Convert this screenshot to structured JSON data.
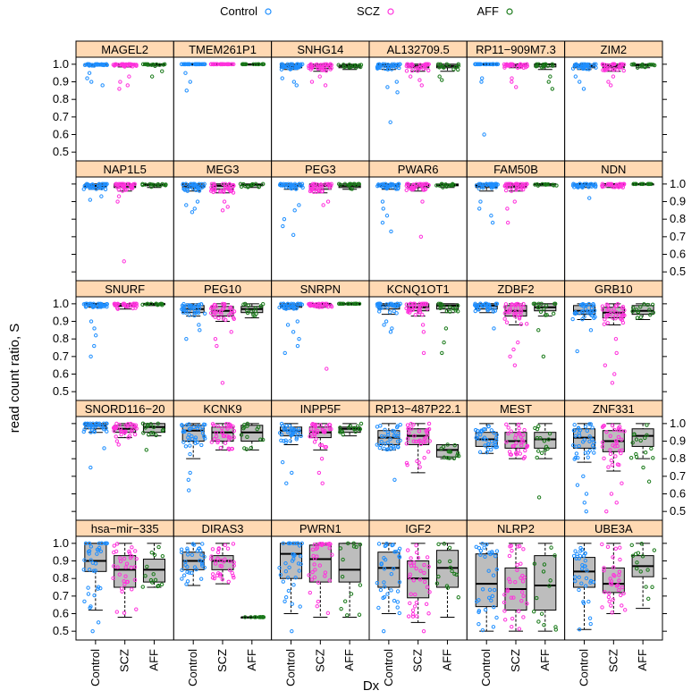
{
  "chart_data": {
    "type": "box",
    "layout": {
      "columns": 6,
      "rows": 5
    },
    "groups": [
      "Control",
      "SCZ",
      "AFF"
    ],
    "colors": {
      "Control": "#1f8fff",
      "SCZ": "#ff33dd",
      "AFF": "#1a7a1a",
      "strip": "#ffd9b3",
      "box": "#bdbdbd"
    },
    "xlabel": "Dx",
    "ylabel": "read count ratio, S",
    "ylim": [
      0.45,
      1.04
    ],
    "yticks": [
      0.5,
      0.6,
      0.7,
      0.8,
      0.9,
      1.0
    ],
    "ytick_labels": [
      "0.5",
      "0.6",
      "0.7",
      "0.8",
      "0.9",
      "1.0"
    ],
    "panels": [
      {
        "gene": "MAGEL2",
        "stats": {
          "Control": [
            0.99,
            0.995,
            1,
            1,
            1
          ],
          "SCZ": [
            0.985,
            0.995,
            1,
            1,
            1
          ],
          "AFF": [
            0.99,
            0.995,
            1,
            1,
            1
          ]
        },
        "low": {
          "Control": [
            0.88,
            0.9,
            0.92,
            0.95
          ],
          "SCZ": [
            0.86,
            0.88,
            0.9,
            0.93
          ],
          "AFF": [
            0.93,
            0.96
          ]
        }
      },
      {
        "gene": "TMEM261P1",
        "stats": {
          "Control": [
            1,
            1,
            1,
            1,
            1
          ],
          "SCZ": [
            1,
            1,
            1,
            1,
            1
          ],
          "AFF": [
            1,
            1,
            1,
            1,
            1
          ]
        },
        "low": {
          "Control": [
            0.85,
            0.9,
            0.95
          ],
          "SCZ": [],
          "AFF": []
        }
      },
      {
        "gene": "SNHG14",
        "stats": {
          "Control": [
            0.97,
            0.98,
            0.99,
            1,
            1
          ],
          "SCZ": [
            0.96,
            0.975,
            0.99,
            1,
            1
          ],
          "AFF": [
            0.97,
            0.98,
            0.99,
            0.995,
            1
          ]
        },
        "low": {
          "Control": [
            0.88,
            0.9,
            0.92
          ],
          "SCZ": [
            0.88,
            0.9,
            0.93
          ],
          "AFF": []
        }
      },
      {
        "gene": "AL132709.5",
        "stats": {
          "Control": [
            0.97,
            0.985,
            0.995,
            1,
            1
          ],
          "SCZ": [
            0.96,
            0.98,
            0.99,
            1,
            1
          ],
          "AFF": [
            0.96,
            0.98,
            0.99,
            1,
            1
          ]
        },
        "low": {
          "Control": [
            0.67,
            0.84,
            0.87,
            0.9
          ],
          "SCZ": [
            0.88,
            0.91,
            0.93
          ],
          "AFF": [
            0.91,
            0.93
          ]
        }
      },
      {
        "gene": "RP11−909M7.3",
        "stats": {
          "Control": [
            1,
            1,
            1,
            1,
            1
          ],
          "SCZ": [
            0.98,
            0.99,
            1,
            1,
            1
          ],
          "AFF": [
            0.97,
            0.985,
            1,
            1,
            1
          ]
        },
        "low": {
          "Control": [
            0.6,
            0.9,
            0.92
          ],
          "SCZ": [
            0.87,
            0.9,
            0.92
          ],
          "AFF": [
            0.86,
            0.9,
            0.93
          ]
        }
      },
      {
        "gene": "ZIM2",
        "stats": {
          "Control": [
            0.97,
            0.98,
            0.99,
            1,
            1
          ],
          "SCZ": [
            0.96,
            0.98,
            0.99,
            1,
            1
          ],
          "AFF": [
            0.98,
            0.99,
            0.995,
            1,
            1
          ]
        },
        "low": {
          "Control": [
            0.86,
            0.9,
            0.93
          ],
          "SCZ": [
            0.88,
            0.9,
            0.93
          ],
          "AFF": []
        }
      },
      {
        "gene": "NAP1L5",
        "stats": {
          "Control": [
            0.97,
            0.98,
            0.99,
            1,
            1
          ],
          "SCZ": [
            0.96,
            0.98,
            0.99,
            1,
            1
          ],
          "AFF": [
            0.98,
            0.99,
            0.995,
            1,
            1
          ]
        },
        "low": {
          "Control": [
            0.91,
            0.93
          ],
          "SCZ": [
            0.56,
            0.9,
            0.93
          ],
          "AFF": []
        }
      },
      {
        "gene": "MEG3",
        "stats": {
          "Control": [
            0.96,
            0.98,
            0.99,
            1,
            1
          ],
          "SCZ": [
            0.95,
            0.97,
            0.99,
            1,
            1
          ],
          "AFF": [
            0.98,
            0.99,
            0.995,
            1,
            1
          ]
        },
        "low": {
          "Control": [
            0.84,
            0.86,
            0.88,
            0.9
          ],
          "SCZ": [
            0.85,
            0.87,
            0.9
          ],
          "AFF": []
        }
      },
      {
        "gene": "PEG3",
        "stats": {
          "Control": [
            0.97,
            0.985,
            0.99,
            1,
            1
          ],
          "SCZ": [
            0.95,
            0.97,
            0.99,
            1,
            1
          ],
          "AFF": [
            0.97,
            0.98,
            0.99,
            1,
            1
          ]
        },
        "low": {
          "Control": [
            0.71,
            0.76,
            0.8,
            0.85,
            0.88
          ],
          "SCZ": [
            0.88,
            0.9
          ],
          "AFF": []
        }
      },
      {
        "gene": "PWAR6",
        "stats": {
          "Control": [
            0.97,
            0.985,
            0.99,
            1,
            1
          ],
          "SCZ": [
            0.96,
            0.98,
            0.99,
            1,
            1
          ],
          "AFF": [
            0.98,
            0.99,
            0.995,
            1,
            1
          ]
        },
        "low": {
          "Control": [
            0.73,
            0.78,
            0.82,
            0.86,
            0.9
          ],
          "SCZ": [
            0.7,
            0.9
          ],
          "AFF": []
        }
      },
      {
        "gene": "FAM50B",
        "stats": {
          "Control": [
            0.96,
            0.98,
            0.99,
            1,
            1
          ],
          "SCZ": [
            0.96,
            0.98,
            0.99,
            1,
            1
          ],
          "AFF": [
            0.99,
            0.995,
            1,
            1,
            1
          ]
        },
        "low": {
          "Control": [
            0.78,
            0.82,
            0.86,
            0.9
          ],
          "SCZ": [
            0.78,
            0.86,
            0.9
          ],
          "AFF": []
        }
      },
      {
        "gene": "NDN",
        "stats": {
          "Control": [
            0.98,
            0.99,
            1,
            1,
            1
          ],
          "SCZ": [
            0.98,
            0.99,
            1,
            1,
            1
          ],
          "AFF": [
            1,
            1,
            1,
            1,
            1
          ]
        },
        "low": {
          "Control": [
            0.92
          ],
          "SCZ": [],
          "AFF": []
        }
      },
      {
        "gene": "SNURF",
        "stats": {
          "Control": [
            0.98,
            0.99,
            1,
            1,
            1
          ],
          "SCZ": [
            0.97,
            0.985,
            0.99,
            1,
            1
          ],
          "AFF": [
            0.99,
            0.995,
            1,
            1,
            1
          ]
        },
        "low": {
          "Control": [
            0.7,
            0.76,
            0.82,
            0.86,
            0.9
          ],
          "SCZ": [],
          "AFF": []
        }
      },
      {
        "gene": "PEG10",
        "stats": {
          "Control": [
            0.93,
            0.95,
            0.97,
            0.99,
            1
          ],
          "SCZ": [
            0.9,
            0.93,
            0.96,
            0.985,
            1
          ],
          "AFF": [
            0.92,
            0.95,
            0.97,
            0.985,
            1
          ]
        },
        "low": {
          "Control": [
            0.8,
            0.85,
            0.88
          ],
          "SCZ": [
            0.55,
            0.76,
            0.8,
            0.84
          ],
          "AFF": []
        }
      },
      {
        "gene": "SNRPN",
        "stats": {
          "Control": [
            0.97,
            0.98,
            0.99,
            1,
            1
          ],
          "SCZ": [
            0.98,
            0.99,
            1,
            1,
            1
          ],
          "AFF": [
            1,
            1,
            1,
            1,
            1
          ]
        },
        "low": {
          "Control": [
            0.72,
            0.76,
            0.8,
            0.84,
            0.88,
            0.9
          ],
          "SCZ": [
            0.63
          ],
          "AFF": []
        }
      },
      {
        "gene": "KCNQ1OT1",
        "stats": {
          "Control": [
            0.94,
            0.97,
            0.99,
            1,
            1
          ],
          "SCZ": [
            0.93,
            0.96,
            0.98,
            1,
            1
          ],
          "AFF": [
            0.95,
            0.97,
            0.99,
            1,
            1
          ]
        },
        "low": {
          "Control": [
            0.84,
            0.86,
            0.88,
            0.9
          ],
          "SCZ": [
            0.72,
            0.84,
            0.88
          ],
          "AFF": [
            0.72,
            0.78,
            0.86
          ]
        }
      },
      {
        "gene": "ZDBF2",
        "stats": {
          "Control": [
            0.95,
            0.97,
            0.99,
            1,
            1
          ],
          "SCZ": [
            0.88,
            0.93,
            0.96,
            0.99,
            1
          ],
          "AFF": [
            0.93,
            0.96,
            0.98,
            1,
            1
          ]
        },
        "low": {
          "Control": [
            0.86
          ],
          "SCZ": [
            0.65,
            0.7,
            0.74,
            0.78
          ],
          "AFF": [
            0.7,
            0.85
          ]
        }
      },
      {
        "gene": "GRB10",
        "stats": {
          "Control": [
            0.91,
            0.94,
            0.96,
            0.99,
            1
          ],
          "SCZ": [
            0.88,
            0.92,
            0.95,
            0.98,
            1
          ],
          "AFF": [
            0.91,
            0.94,
            0.96,
            0.99,
            1
          ]
        },
        "low": {
          "Control": [
            0.73,
            0.85
          ],
          "SCZ": [
            0.55,
            0.6,
            0.65,
            0.72,
            0.8
          ],
          "AFF": []
        }
      },
      {
        "gene": "SNORD116−20",
        "stats": {
          "Control": [
            0.95,
            0.97,
            0.99,
            1,
            1
          ],
          "SCZ": [
            0.92,
            0.95,
            0.97,
            0.99,
            1
          ],
          "AFF": [
            0.93,
            0.95,
            0.98,
            1,
            1
          ]
        },
        "low": {
          "Control": [
            0.75,
            0.86
          ],
          "SCZ": [
            0.88,
            0.9
          ],
          "AFF": [
            0.85
          ]
        }
      },
      {
        "gene": "KCNK9",
        "stats": {
          "Control": [
            0.8,
            0.9,
            0.96,
            0.99,
            1
          ],
          "SCZ": [
            0.85,
            0.9,
            0.95,
            0.98,
            1
          ],
          "AFF": [
            0.85,
            0.9,
            0.95,
            0.99,
            1
          ]
        },
        "low": {
          "Control": [
            0.62,
            0.68,
            0.72
          ],
          "SCZ": [],
          "AFF": []
        }
      },
      {
        "gene": "INPP5F",
        "stats": {
          "Control": [
            0.88,
            0.93,
            0.96,
            0.98,
            1
          ],
          "SCZ": [
            0.85,
            0.92,
            0.95,
            0.98,
            1
          ],
          "AFF": [
            0.93,
            0.95,
            0.97,
            0.98,
            1
          ]
        },
        "low": {
          "Control": [
            0.66,
            0.72,
            0.78
          ],
          "SCZ": [
            0.66,
            0.72,
            0.8
          ],
          "AFF": []
        }
      },
      {
        "gene": "RP13−487P22.1",
        "stats": {
          "Control": [
            0.85,
            0.88,
            0.92,
            0.96,
            1
          ],
          "SCZ": [
            0.72,
            0.88,
            0.93,
            0.97,
            1
          ],
          "AFF": [
            0.8,
            0.81,
            0.85,
            0.88,
            0.88
          ]
        },
        "low": {
          "Control": [
            0.68
          ],
          "SCZ": [],
          "AFF": []
        }
      },
      {
        "gene": "MEST",
        "stats": {
          "Control": [
            0.83,
            0.87,
            0.91,
            0.95,
            1
          ],
          "SCZ": [
            0.8,
            0.86,
            0.9,
            0.95,
            1
          ],
          "AFF": [
            0.8,
            0.86,
            0.91,
            0.95,
            1
          ]
        },
        "low": {
          "Control": [],
          "SCZ": [],
          "AFF": [
            0.58
          ]
        }
      },
      {
        "gene": "ZNF331",
        "stats": {
          "Control": [
            0.78,
            0.86,
            0.92,
            0.97,
            1
          ],
          "SCZ": [
            0.73,
            0.84,
            0.9,
            0.96,
            1
          ],
          "AFF": [
            0.8,
            0.87,
            0.93,
            0.97,
            1
          ]
        },
        "low": {
          "Control": [
            0.5,
            0.55,
            0.6,
            0.65,
            0.7
          ],
          "SCZ": [
            0.5,
            0.55,
            0.6,
            0.66
          ],
          "AFF": [
            0.67,
            0.75
          ]
        }
      },
      {
        "gene": "hsa−mir−335",
        "stats": {
          "Control": [
            0.62,
            0.84,
            0.9,
            1,
            1
          ],
          "SCZ": [
            0.58,
            0.75,
            0.85,
            0.93,
            1
          ],
          "AFF": [
            0.75,
            0.78,
            0.85,
            0.91,
            1
          ]
        },
        "low": {
          "Control": [
            0.5,
            0.55
          ],
          "SCZ": [],
          "AFF": []
        }
      },
      {
        "gene": "DIRAS3",
        "stats": {
          "Control": [
            0.76,
            0.85,
            0.9,
            0.95,
            1
          ],
          "SCZ": [
            0.77,
            0.85,
            0.9,
            0.93,
            1
          ],
          "AFF": [
            0.58,
            0.58,
            0.58,
            0.58,
            0.58
          ]
        },
        "low": {
          "Control": [],
          "SCZ": [],
          "AFF": []
        }
      },
      {
        "gene": "PWRN1",
        "stats": {
          "Control": [
            0.6,
            0.8,
            0.94,
            1,
            1
          ],
          "SCZ": [
            0.58,
            0.78,
            0.91,
            0.99,
            1
          ],
          "AFF": [
            0.58,
            0.78,
            0.85,
            1,
            1
          ]
        },
        "low": {
          "Control": [
            0.5
          ],
          "SCZ": [],
          "AFF": []
        }
      },
      {
        "gene": "IGF2",
        "stats": {
          "Control": [
            0.6,
            0.75,
            0.86,
            0.95,
            1
          ],
          "SCZ": [
            0.55,
            0.69,
            0.8,
            0.9,
            1
          ],
          "AFF": [
            0.58,
            0.75,
            0.86,
            0.96,
            1
          ]
        },
        "low": {
          "Control": [
            0.5
          ],
          "SCZ": [
            0.5
          ],
          "AFF": []
        }
      },
      {
        "gene": "NLRP2",
        "stats": {
          "Control": [
            0.5,
            0.64,
            0.77,
            0.94,
            1
          ],
          "SCZ": [
            0.5,
            0.62,
            0.74,
            0.86,
            1
          ],
          "AFF": [
            0.5,
            0.62,
            0.76,
            0.93,
            1
          ]
        },
        "low": {
          "Control": [],
          "SCZ": [],
          "AFF": []
        }
      },
      {
        "gene": "UBE3A",
        "stats": {
          "Control": [
            0.51,
            0.75,
            0.84,
            0.92,
            1
          ],
          "SCZ": [
            0.6,
            0.72,
            0.77,
            0.86,
            1
          ],
          "AFF": [
            0.63,
            0.81,
            0.87,
            0.93,
            1
          ]
        },
        "low": {
          "Control": [],
          "SCZ": [],
          "AFF": []
        }
      }
    ]
  }
}
